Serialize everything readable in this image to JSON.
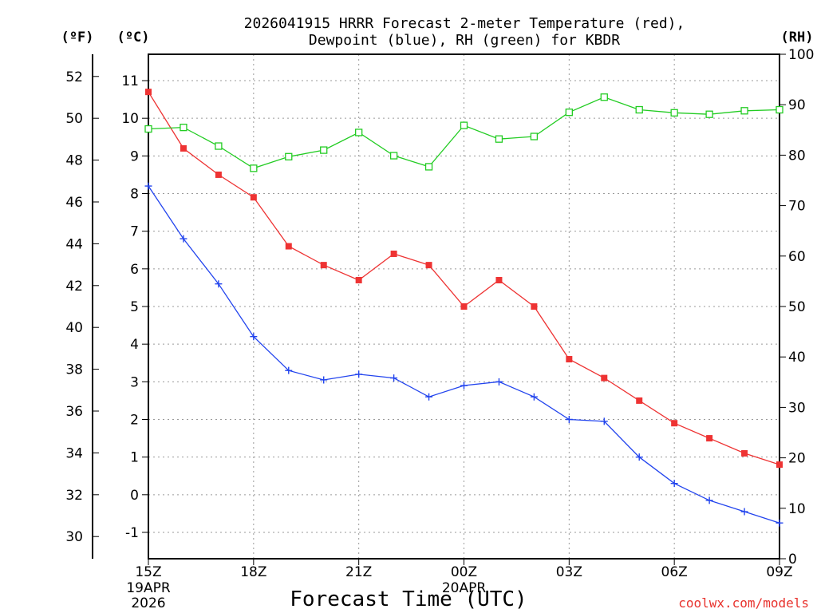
{
  "chart_data": {
    "type": "line",
    "title_line1": "2026041915 HRRR Forecast 2-meter Temperature (red),",
    "title_line2": "Dewpoint (blue), RH (green) for KBDR",
    "xlabel": "Forecast Time (UTC)",
    "credit": "coolwx.com/models",
    "left_outer_unit": "(ºF)",
    "left_inner_unit": "(ºC)",
    "right_unit": "(RH)",
    "x": [
      0,
      1,
      2,
      3,
      4,
      5,
      6,
      7,
      8,
      9,
      10,
      11,
      12,
      13,
      14,
      15,
      16,
      17,
      18
    ],
    "x_range": [
      0,
      18
    ],
    "x_ticks": [
      {
        "x": 0,
        "label": "15Z",
        "sub1": "19APR",
        "sub2": "2026"
      },
      {
        "x": 3,
        "label": "18Z"
      },
      {
        "x": 6,
        "label": "21Z"
      },
      {
        "x": 9,
        "label": "00Z",
        "sub1": "20APR"
      },
      {
        "x": 12,
        "label": "03Z"
      },
      {
        "x": 15,
        "label": "06Z"
      },
      {
        "x": 18,
        "label": "09Z"
      }
    ],
    "ylim_c": [
      -1.7,
      11.7
    ],
    "ylim_rh": [
      0,
      100
    ],
    "yticks_c": [
      "-1",
      "0",
      "1",
      "2",
      "3",
      "4",
      "5",
      "6",
      "7",
      "8",
      "9",
      "10",
      "11"
    ],
    "yticks_f": [
      "30",
      "32",
      "34",
      "36",
      "38",
      "40",
      "42",
      "44",
      "46",
      "48",
      "50",
      "52"
    ],
    "yticks_rh": [
      "0",
      "10",
      "20",
      "30",
      "40",
      "50",
      "60",
      "70",
      "80",
      "90",
      "100"
    ],
    "series": [
      {
        "name": "Temperature",
        "unit": "C",
        "color": "#ee3333",
        "marker": "filled-square",
        "values": [
          10.7,
          9.2,
          8.5,
          7.9,
          6.6,
          6.1,
          5.7,
          6.4,
          6.1,
          5.0,
          5.7,
          5.0,
          3.6,
          3.1,
          2.5,
          1.9,
          1.5,
          1.1,
          0.8
        ]
      },
      {
        "name": "Dewpoint",
        "unit": "C",
        "color": "#2244ee",
        "marker": "plus",
        "values": [
          8.2,
          6.8,
          5.6,
          4.2,
          3.3,
          3.05,
          3.2,
          3.1,
          2.6,
          2.9,
          3.0,
          2.6,
          2.0,
          1.95,
          1.0,
          0.3,
          -0.15,
          -0.45,
          -0.75
        ]
      },
      {
        "name": "RH",
        "unit": "%",
        "color": "#22cc22",
        "marker": "open-square",
        "values": [
          85.2,
          85.5,
          81.8,
          77.4,
          79.7,
          81.0,
          84.5,
          79.9,
          77.7,
          85.9,
          83.2,
          83.7,
          88.5,
          91.5,
          89.0,
          88.4,
          88.1,
          88.8,
          89.0
        ]
      }
    ]
  }
}
